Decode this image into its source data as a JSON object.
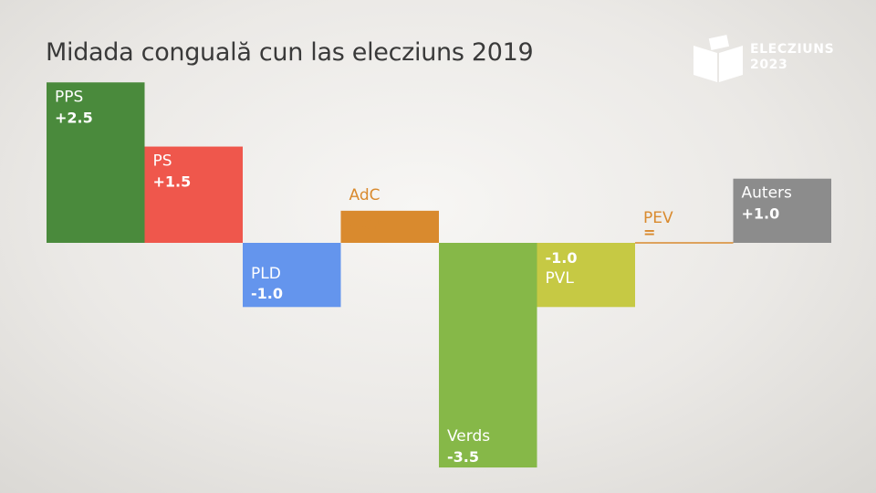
{
  "title": "Midada conguală cun las elecziuns 2019",
  "logo": {
    "line1": "ELECZIUNS",
    "line2": "2023",
    "icon": "ballot-box-icon"
  },
  "chart_data": {
    "type": "bar",
    "title": "Midada conguală cun las elecziuns 2019",
    "categories": [
      "PPS",
      "PS",
      "PLD",
      "AdC",
      "Verds",
      "PVL",
      "PEV",
      "Auters"
    ],
    "values": [
      2.5,
      1.5,
      -1.0,
      0.5,
      -3.5,
      -1.0,
      0.0,
      1.0
    ],
    "value_labels": [
      "+2.5",
      "+1.5",
      "-1.0",
      "+0.5",
      "-3.5",
      "-1.0",
      "=",
      "+1.0"
    ],
    "colors": [
      "#4a8a3c",
      "#ef574c",
      "#6495ed",
      "#d98a2e",
      "#86b848",
      "#c6c944",
      "#d98a2e",
      "#8c8c8c"
    ],
    "text_colors": [
      "#ffffff",
      "#ffffff",
      "#ffffff",
      "#d98a2e",
      "#ffffff",
      "#ffffff",
      "#d98a2e",
      "#ffffff"
    ],
    "ylim": [
      -3.5,
      2.5
    ],
    "xlabel": "",
    "ylabel": "",
    "grid": false,
    "legend": "none"
  }
}
